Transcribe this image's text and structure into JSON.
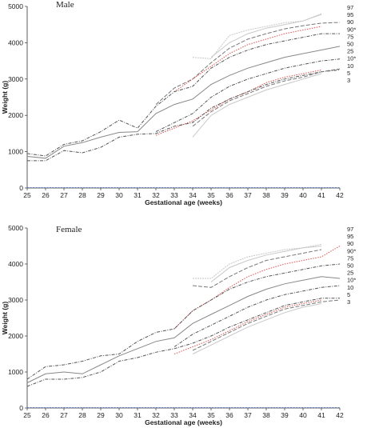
{
  "chart_data": [
    {
      "type": "line",
      "title": "Male",
      "xlabel": "Gestational age (weeks)",
      "ylabel": "Weight (g)",
      "xlim": [
        25,
        42
      ],
      "ylim": [
        0,
        5000
      ],
      "xticks": [
        25,
        26,
        27,
        28,
        29,
        30,
        31,
        32,
        33,
        34,
        35,
        36,
        37,
        38,
        39,
        40,
        41,
        42
      ],
      "yticks": [
        0,
        1000,
        2000,
        3000,
        4000,
        5000
      ],
      "grid": false,
      "legend_position": "right",
      "series": [
        {
          "name": "97",
          "color": "#c8c8c8",
          "dash": "2,1",
          "x": [
            34,
            35,
            36,
            37,
            38,
            39,
            40,
            41
          ],
          "y": [
            3600,
            3560,
            4200,
            4350,
            4450,
            4550,
            4600,
            4800
          ]
        },
        {
          "name": "95",
          "color": "#c8c8c8",
          "dash": "",
          "x": [
            35,
            36,
            37,
            38,
            39,
            40,
            41
          ],
          "y": [
            3600,
            4000,
            4250,
            4400,
            4500,
            4600,
            4780
          ]
        },
        {
          "name": "90",
          "color": "#777777",
          "dash": "5,2",
          "x": [
            32,
            33,
            34,
            35,
            36,
            37,
            38,
            39,
            40,
            41,
            42
          ],
          "y": [
            2300,
            2750,
            3000,
            3450,
            3850,
            4100,
            4250,
            4380,
            4470,
            4540,
            4560
          ]
        },
        {
          "name": "90*",
          "color": "#d9534f",
          "dash": "1.5,1.5",
          "x": [
            33,
            34,
            35,
            36,
            37,
            38,
            39,
            40,
            41
          ],
          "y": [
            2650,
            3000,
            3350,
            3700,
            3950,
            4100,
            4250,
            4350,
            4450
          ]
        },
        {
          "name": "75",
          "color": "#555555",
          "dash": "4,1.5,1,1.5",
          "x": [
            25,
            26,
            27,
            28,
            29,
            30,
            31,
            32,
            33,
            34,
            35,
            36,
            37,
            38,
            39,
            40,
            41,
            42
          ],
          "y": [
            950,
            880,
            1200,
            1300,
            1550,
            1870,
            1650,
            2250,
            2650,
            2800,
            3300,
            3600,
            3800,
            3950,
            4050,
            4150,
            4250,
            4250
          ]
        },
        {
          "name": "50",
          "color": "#888888",
          "dash": "",
          "x": [
            25,
            26,
            27,
            28,
            29,
            30,
            31,
            32,
            33,
            34,
            35,
            36,
            37,
            38,
            39,
            40,
            41,
            42
          ],
          "y": [
            870,
            820,
            1150,
            1250,
            1400,
            1530,
            1550,
            2050,
            2300,
            2450,
            2850,
            3100,
            3300,
            3450,
            3600,
            3700,
            3800,
            3900
          ]
        },
        {
          "name": "25",
          "color": "#555555",
          "dash": "4,1.5,1,1.5",
          "x": [
            32,
            33,
            34,
            35,
            36,
            37,
            38,
            39,
            40,
            41,
            42
          ],
          "y": [
            1550,
            1800,
            2050,
            2500,
            2800,
            3000,
            3150,
            3300,
            3400,
            3500,
            3550
          ]
        },
        {
          "name": "10*",
          "color": "#d9534f",
          "dash": "1.5,1.5",
          "x": [
            32,
            33,
            34,
            35,
            36,
            37,
            38,
            39,
            40,
            41
          ],
          "y": [
            1450,
            1650,
            1850,
            2150,
            2450,
            2650,
            2900,
            3050,
            3150,
            3250
          ]
        },
        {
          "name": "10",
          "color": "#555555",
          "dash": "4,1.5,1,1.5",
          "x": [
            25,
            26,
            27,
            28,
            29,
            30,
            31,
            32,
            33,
            34,
            35,
            36,
            37,
            38,
            39,
            40,
            41,
            42
          ],
          "y": [
            750,
            750,
            1030,
            970,
            1120,
            1400,
            1480,
            1500,
            1700,
            1800,
            2200,
            2450,
            2650,
            2850,
            3000,
            3100,
            3200,
            3250
          ]
        },
        {
          "name": "5",
          "color": "#777777",
          "dash": "5,2",
          "x": [
            34,
            35,
            36,
            37,
            38,
            39,
            40,
            41,
            42
          ],
          "y": [
            1700,
            2100,
            2400,
            2600,
            2800,
            2950,
            3050,
            3200,
            3280
          ]
        },
        {
          "name": "3",
          "color": "#c8c8c8",
          "dash": "",
          "x": [
            34,
            35,
            36,
            37,
            38,
            39,
            40,
            41
          ],
          "y": [
            1400,
            2000,
            2300,
            2500,
            2700,
            2850,
            3000,
            3150
          ]
        }
      ],
      "baseline": {
        "y": 0,
        "color": "#4472c4"
      }
    },
    {
      "type": "line",
      "title": "Female",
      "xlabel": "Gestational age (weeks)",
      "ylabel": "Weight (g)",
      "xlim": [
        25,
        42
      ],
      "ylim": [
        0,
        5000
      ],
      "xticks": [
        25,
        26,
        27,
        28,
        29,
        30,
        31,
        32,
        33,
        34,
        35,
        36,
        37,
        38,
        39,
        40,
        41,
        42
      ],
      "yticks": [
        0,
        1000,
        2000,
        3000,
        4000,
        5000
      ],
      "grid": false,
      "legend_position": "right",
      "series": [
        {
          "name": "97",
          "color": "#c8c8c8",
          "dash": "2,1",
          "x": [
            34,
            35,
            36,
            37,
            38,
            39,
            40,
            41
          ],
          "y": [
            3600,
            3600,
            4000,
            4200,
            4300,
            4400,
            4450,
            4550
          ]
        },
        {
          "name": "95",
          "color": "#c8c8c8",
          "dash": "",
          "x": [
            35,
            36,
            37,
            38,
            39,
            40,
            41
          ],
          "y": [
            3500,
            3900,
            4100,
            4250,
            4350,
            4450,
            4500
          ]
        },
        {
          "name": "90",
          "color": "#777777",
          "dash": "5,2",
          "x": [
            34,
            35,
            36,
            37,
            38,
            39,
            40,
            41
          ],
          "y": [
            3400,
            3350,
            3650,
            3900,
            4100,
            4200,
            4300,
            4400
          ]
        },
        {
          "name": "90*",
          "color": "#d9534f",
          "dash": "1.5,1.5",
          "x": [
            33,
            34,
            35,
            36,
            37,
            38,
            39,
            40,
            41,
            42
          ],
          "y": [
            2200,
            2700,
            3000,
            3350,
            3650,
            3850,
            4000,
            4100,
            4200,
            4500
          ]
        },
        {
          "name": "75",
          "color": "#555555",
          "dash": "4,1.5,1,1.5",
          "x": [
            25,
            26,
            27,
            28,
            29,
            30,
            31,
            32,
            33,
            34,
            35,
            36,
            37,
            38,
            39,
            40,
            41,
            42
          ],
          "y": [
            800,
            1150,
            1200,
            1300,
            1450,
            1500,
            1850,
            2100,
            2200,
            2700,
            3000,
            3300,
            3500,
            3650,
            3750,
            3850,
            3950,
            4000
          ]
        },
        {
          "name": "50",
          "color": "#888888",
          "dash": "",
          "x": [
            25,
            26,
            27,
            28,
            29,
            30,
            31,
            32,
            33,
            34,
            35,
            36,
            37,
            38,
            39,
            40,
            41,
            42
          ],
          "y": [
            700,
            950,
            1000,
            950,
            1200,
            1450,
            1650,
            1850,
            1950,
            2350,
            2600,
            2850,
            3100,
            3300,
            3450,
            3550,
            3650,
            3600
          ]
        },
        {
          "name": "25",
          "color": "#555555",
          "dash": "4,1.5,1,1.5",
          "x": [
            33,
            34,
            35,
            36,
            37,
            38,
            39,
            40,
            41,
            42
          ],
          "y": [
            1700,
            2050,
            2300,
            2550,
            2800,
            3000,
            3150,
            3250,
            3350,
            3400
          ]
        },
        {
          "name": "10*",
          "color": "#d9534f",
          "dash": "1.5,1.5",
          "x": [
            33,
            34,
            35,
            36,
            37,
            38,
            39,
            40,
            41
          ],
          "y": [
            1500,
            1700,
            1900,
            2150,
            2400,
            2600,
            2800,
            2900,
            3000
          ]
        },
        {
          "name": "10",
          "color": "#555555",
          "dash": "4,1.5,1,1.5",
          "x": [
            25,
            26,
            27,
            28,
            29,
            30,
            31,
            32,
            33,
            34,
            35,
            36,
            37,
            38,
            39,
            40,
            41,
            42
          ],
          "y": [
            600,
            800,
            800,
            850,
            1000,
            1300,
            1400,
            1550,
            1650,
            1800,
            2000,
            2250,
            2450,
            2650,
            2850,
            2950,
            3050,
            3050
          ]
        },
        {
          "name": "5",
          "color": "#777777",
          "dash": "5,2",
          "x": [
            34,
            35,
            36,
            37,
            38,
            39,
            40,
            41,
            42
          ],
          "y": [
            1600,
            1850,
            2100,
            2350,
            2550,
            2750,
            2850,
            2950,
            3000
          ]
        },
        {
          "name": "3",
          "color": "#c8c8c8",
          "dash": "",
          "x": [
            34,
            35,
            36,
            37,
            38,
            39,
            40,
            41
          ],
          "y": [
            1500,
            1750,
            2000,
            2250,
            2450,
            2650,
            2800,
            2900
          ]
        }
      ],
      "baseline": {
        "y": 0,
        "color": "#4472c4"
      }
    }
  ],
  "legend_colors": {
    "normal": "#222222",
    "starred": "#cc3333"
  }
}
